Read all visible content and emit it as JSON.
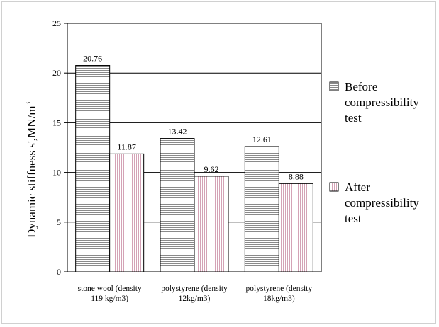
{
  "chart_data": {
    "type": "bar",
    "title": "",
    "xlabel": "",
    "ylabel": "Dynamic stiffness s',MN/m",
    "ylabel_superscript": "3",
    "ylim": [
      0,
      25
    ],
    "yticks": [
      "0",
      "5",
      "10",
      "15",
      "20",
      "25"
    ],
    "grid": "horizontal",
    "legend_position": "right",
    "categories": [
      [
        "stone wool (density",
        "119 kg/m3)"
      ],
      [
        "polystyrene (density",
        "12kg/m3)"
      ],
      [
        "polystyrene (density",
        "18kg/m3)"
      ]
    ],
    "series": [
      {
        "name": "Before compressibility test",
        "legend_lines": [
          "Before",
          "compressibility",
          "test"
        ],
        "values": [
          20.76,
          13.42,
          12.61
        ],
        "labels": [
          "20.76",
          "13.42",
          "12.61"
        ],
        "pattern": "horizontal-lines",
        "color": "#808080"
      },
      {
        "name": "After compressibility test",
        "legend_lines": [
          "After",
          "compressibility",
          "test"
        ],
        "values": [
          11.87,
          9.62,
          8.88
        ],
        "labels": [
          "11.87",
          "9.62",
          "8.88"
        ],
        "pattern": "vertical-lines",
        "color": "#c080a0"
      }
    ]
  }
}
